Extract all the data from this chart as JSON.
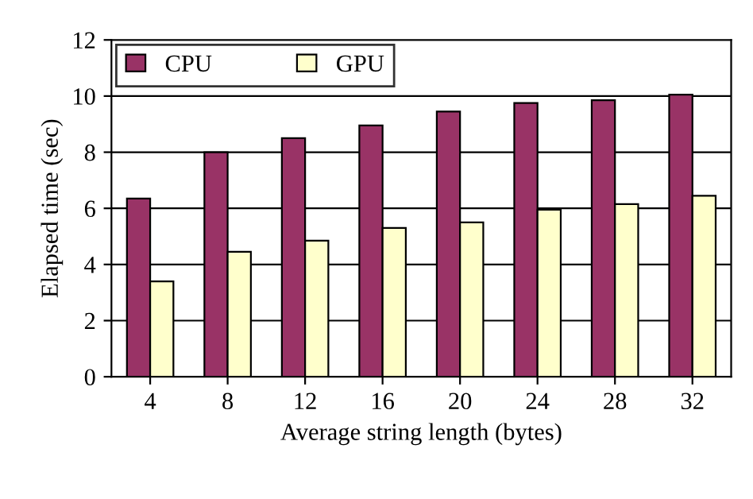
{
  "chart_data": {
    "type": "bar",
    "xlabel": "Average string length (bytes)",
    "ylabel": "Elapsed time (sec)",
    "categories": [
      "4",
      "8",
      "12",
      "16",
      "20",
      "24",
      "28",
      "32"
    ],
    "series": [
      {
        "name": "CPU",
        "color": "#993366",
        "values": [
          6.35,
          8.0,
          8.5,
          8.95,
          9.45,
          9.75,
          9.85,
          10.05
        ]
      },
      {
        "name": "GPU",
        "color": "#ffffcc",
        "values": [
          3.4,
          4.45,
          4.85,
          5.3,
          5.5,
          5.95,
          6.15,
          6.45
        ]
      }
    ],
    "ylim": [
      0,
      12
    ],
    "yticks": [
      0,
      2,
      4,
      6,
      8,
      10,
      12
    ],
    "grid": "y",
    "legend": "top left"
  }
}
